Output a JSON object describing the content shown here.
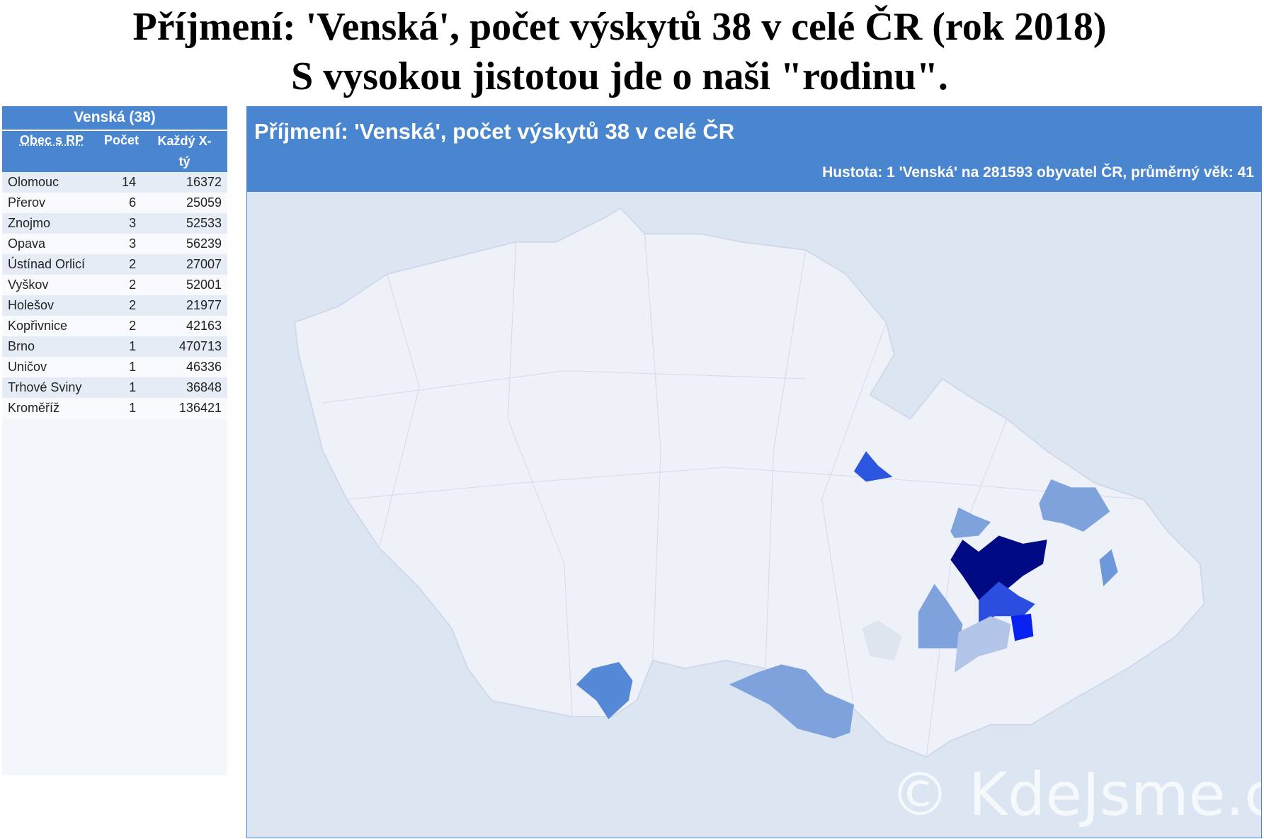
{
  "heading": [
    "Příjmení: 'Venská', počet výskytů 38 v celé ČR (rok 2018)",
    "S vysokou jistotou jde o naši \"rodinu\"."
  ],
  "table": {
    "title": "Venská (38)",
    "columns": [
      "Obec s RP",
      "Počet",
      "Každý X-tý"
    ],
    "rows": [
      [
        "Olomouc",
        14,
        16372
      ],
      [
        "Přerov",
        6,
        25059
      ],
      [
        "Znojmo",
        3,
        52533
      ],
      [
        "Opava",
        3,
        56239
      ],
      [
        "Ústínad Orlicí",
        2,
        27007
      ],
      [
        "Vyškov",
        2,
        52001
      ],
      [
        "Holešov",
        2,
        21977
      ],
      [
        "Kopřivnice",
        2,
        42163
      ],
      [
        "Brno",
        1,
        470713
      ],
      [
        "Uničov",
        1,
        46336
      ],
      [
        "Trhové Sviny",
        1,
        36848
      ],
      [
        "Kroměříž",
        1,
        136421
      ]
    ]
  },
  "map": {
    "title": "Příjmení: 'Venská', počet výskytů 38 v celé ČR",
    "subtitle": "Hustota: 1 'Venská' na 281593 obyvatel ČR, průměrný věk: 41",
    "watermark": "© KdeJsme.cz"
  }
}
